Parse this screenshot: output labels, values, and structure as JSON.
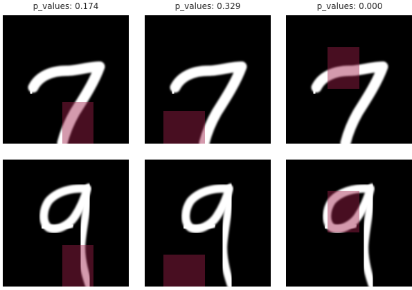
{
  "titles": [
    "p_values: 0.174",
    "p_values: 0.329",
    "p_values: 0.000"
  ]
}
